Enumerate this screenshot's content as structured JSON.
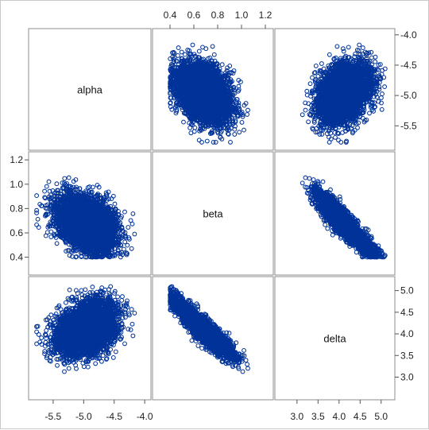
{
  "chart_data": {
    "type": "scatter",
    "title": "",
    "variables": [
      "alpha",
      "beta",
      "delta"
    ],
    "ranges": {
      "alpha": [
        -5.85,
        -3.95
      ],
      "beta": [
        0.28,
        1.24
      ],
      "delta": [
        2.55,
        5.25
      ]
    },
    "axes": {
      "alpha": {
        "ticks": [
          -5.5,
          -5.0,
          -4.5,
          -4.0
        ],
        "labels": [
          "-5.5",
          "-5.0",
          "-4.5",
          "-4.0"
        ]
      },
      "beta": {
        "ticks": [
          0.4,
          0.6,
          0.8,
          1.0,
          1.2
        ],
        "labels": [
          "0.4",
          "0.6",
          "0.8",
          "1.0",
          "1.2"
        ]
      },
      "delta": {
        "ticks": [
          3.0,
          3.5,
          4.0,
          4.5,
          5.0
        ],
        "labels": [
          "3.0",
          "3.5",
          "4.0",
          "4.5",
          "5.0"
        ]
      }
    },
    "distribution": {
      "n_points": 5000,
      "alpha": {
        "center": -4.95,
        "sd": 0.24
      },
      "beta": {
        "center": 0.68,
        "sd": 0.11
      },
      "corr_alpha_beta": -0.35,
      "delta_from_beta": {
        "intercept": 6.2,
        "slope": -3.7,
        "quad": 0.9
      }
    },
    "marker": {
      "shape": "circle",
      "filled": false,
      "color": "#003399"
    },
    "grid": false,
    "legend": "none"
  }
}
